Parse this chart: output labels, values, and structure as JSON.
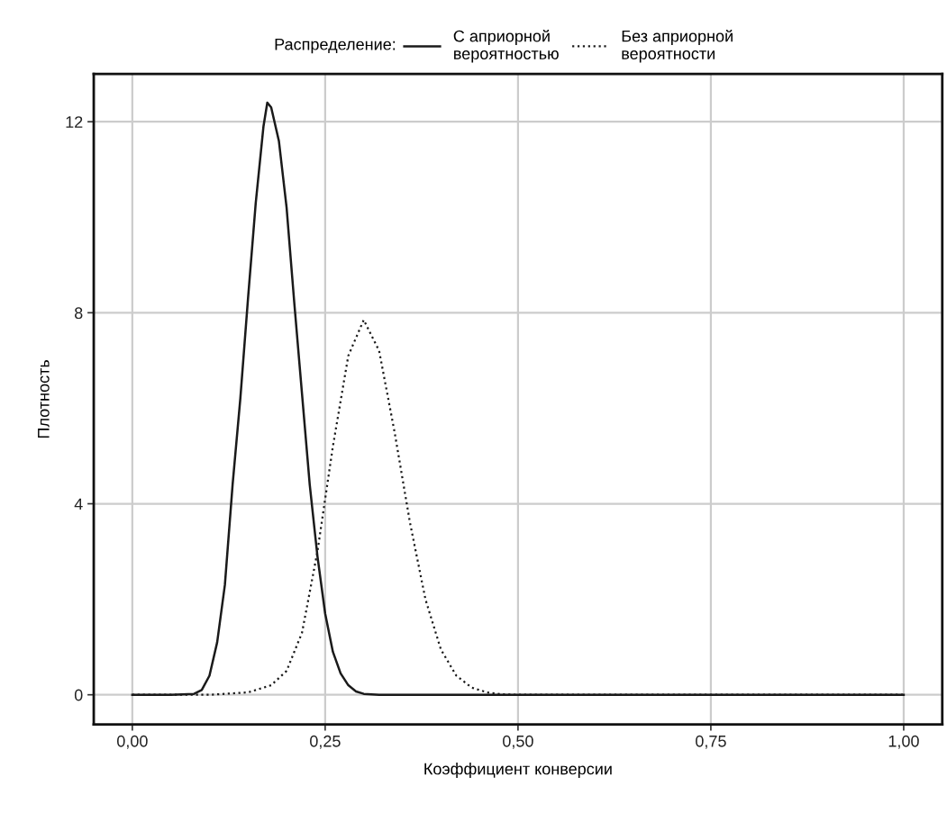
{
  "chart_data": {
    "type": "line",
    "xlabel": "Коэффициент конверсии",
    "ylabel": "Плотность",
    "legend_title": "Распределение:",
    "legend": "top",
    "grid": true,
    "marker": "none",
    "xlim": [
      -0.05,
      1.05
    ],
    "ylim": [
      -0.62,
      13.0
    ],
    "xticks": [
      {
        "value": 0,
        "label": "0,00"
      },
      {
        "value": 0.25,
        "label": "0,25"
      },
      {
        "value": 0.5,
        "label": "0,50"
      },
      {
        "value": 0.75,
        "label": "0,75"
      },
      {
        "value": 1,
        "label": "1,00"
      }
    ],
    "yticks": [
      0,
      4,
      8,
      12
    ],
    "series": [
      {
        "name": "С априорной\nвероятностью",
        "color": "#1a1a1a",
        "line_style": "solid",
        "x": [
          0,
          0.05,
          0.08,
          0.09,
          0.1,
          0.11,
          0.12,
          0.13,
          0.14,
          0.15,
          0.16,
          0.17,
          0.175,
          0.18,
          0.19,
          0.2,
          0.21,
          0.22,
          0.23,
          0.24,
          0.25,
          0.26,
          0.27,
          0.28,
          0.29,
          0.3,
          0.32,
          0.5,
          1.0
        ],
        "values": [
          0,
          0,
          0.02,
          0.1,
          0.4,
          1.1,
          2.3,
          4.4,
          6.2,
          8.3,
          10.3,
          11.9,
          12.4,
          12.3,
          11.6,
          10.2,
          8.2,
          6.3,
          4.4,
          2.9,
          1.7,
          0.9,
          0.45,
          0.2,
          0.07,
          0.02,
          0,
          0,
          0
        ]
      },
      {
        "name": "Без априорной\nвероятности",
        "color": "#1a1a1a",
        "line_style": "dotted",
        "x": [
          0,
          0.1,
          0.15,
          0.18,
          0.2,
          0.22,
          0.24,
          0.26,
          0.28,
          0.3,
          0.32,
          0.34,
          0.36,
          0.38,
          0.4,
          0.42,
          0.44,
          0.46,
          0.48,
          0.5,
          1.0
        ],
        "values": [
          0,
          0,
          0.05,
          0.2,
          0.5,
          1.3,
          3.0,
          5.2,
          7.1,
          7.85,
          7.2,
          5.5,
          3.6,
          2.0,
          0.95,
          0.4,
          0.15,
          0.05,
          0.01,
          0,
          0
        ]
      }
    ]
  }
}
